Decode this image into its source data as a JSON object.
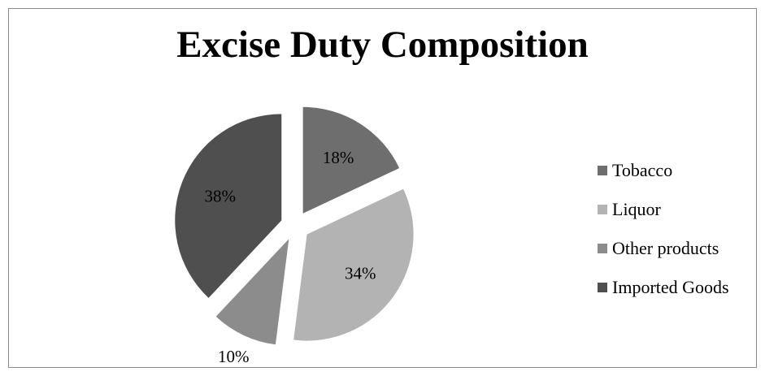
{
  "chart_data": {
    "type": "pie",
    "title": "Excise Duty Composition",
    "categories": [
      "Tobacco",
      "Liquor",
      "Other products",
      "Imported Goods"
    ],
    "values": [
      18,
      34,
      10,
      38
    ],
    "data_labels": [
      "18%",
      "34%",
      "10%",
      "38%"
    ],
    "colors": [
      "#6e6e6e",
      "#b3b3b3",
      "#8c8c8c",
      "#4f4f4f"
    ],
    "exploded": true,
    "legend_position": "right"
  }
}
